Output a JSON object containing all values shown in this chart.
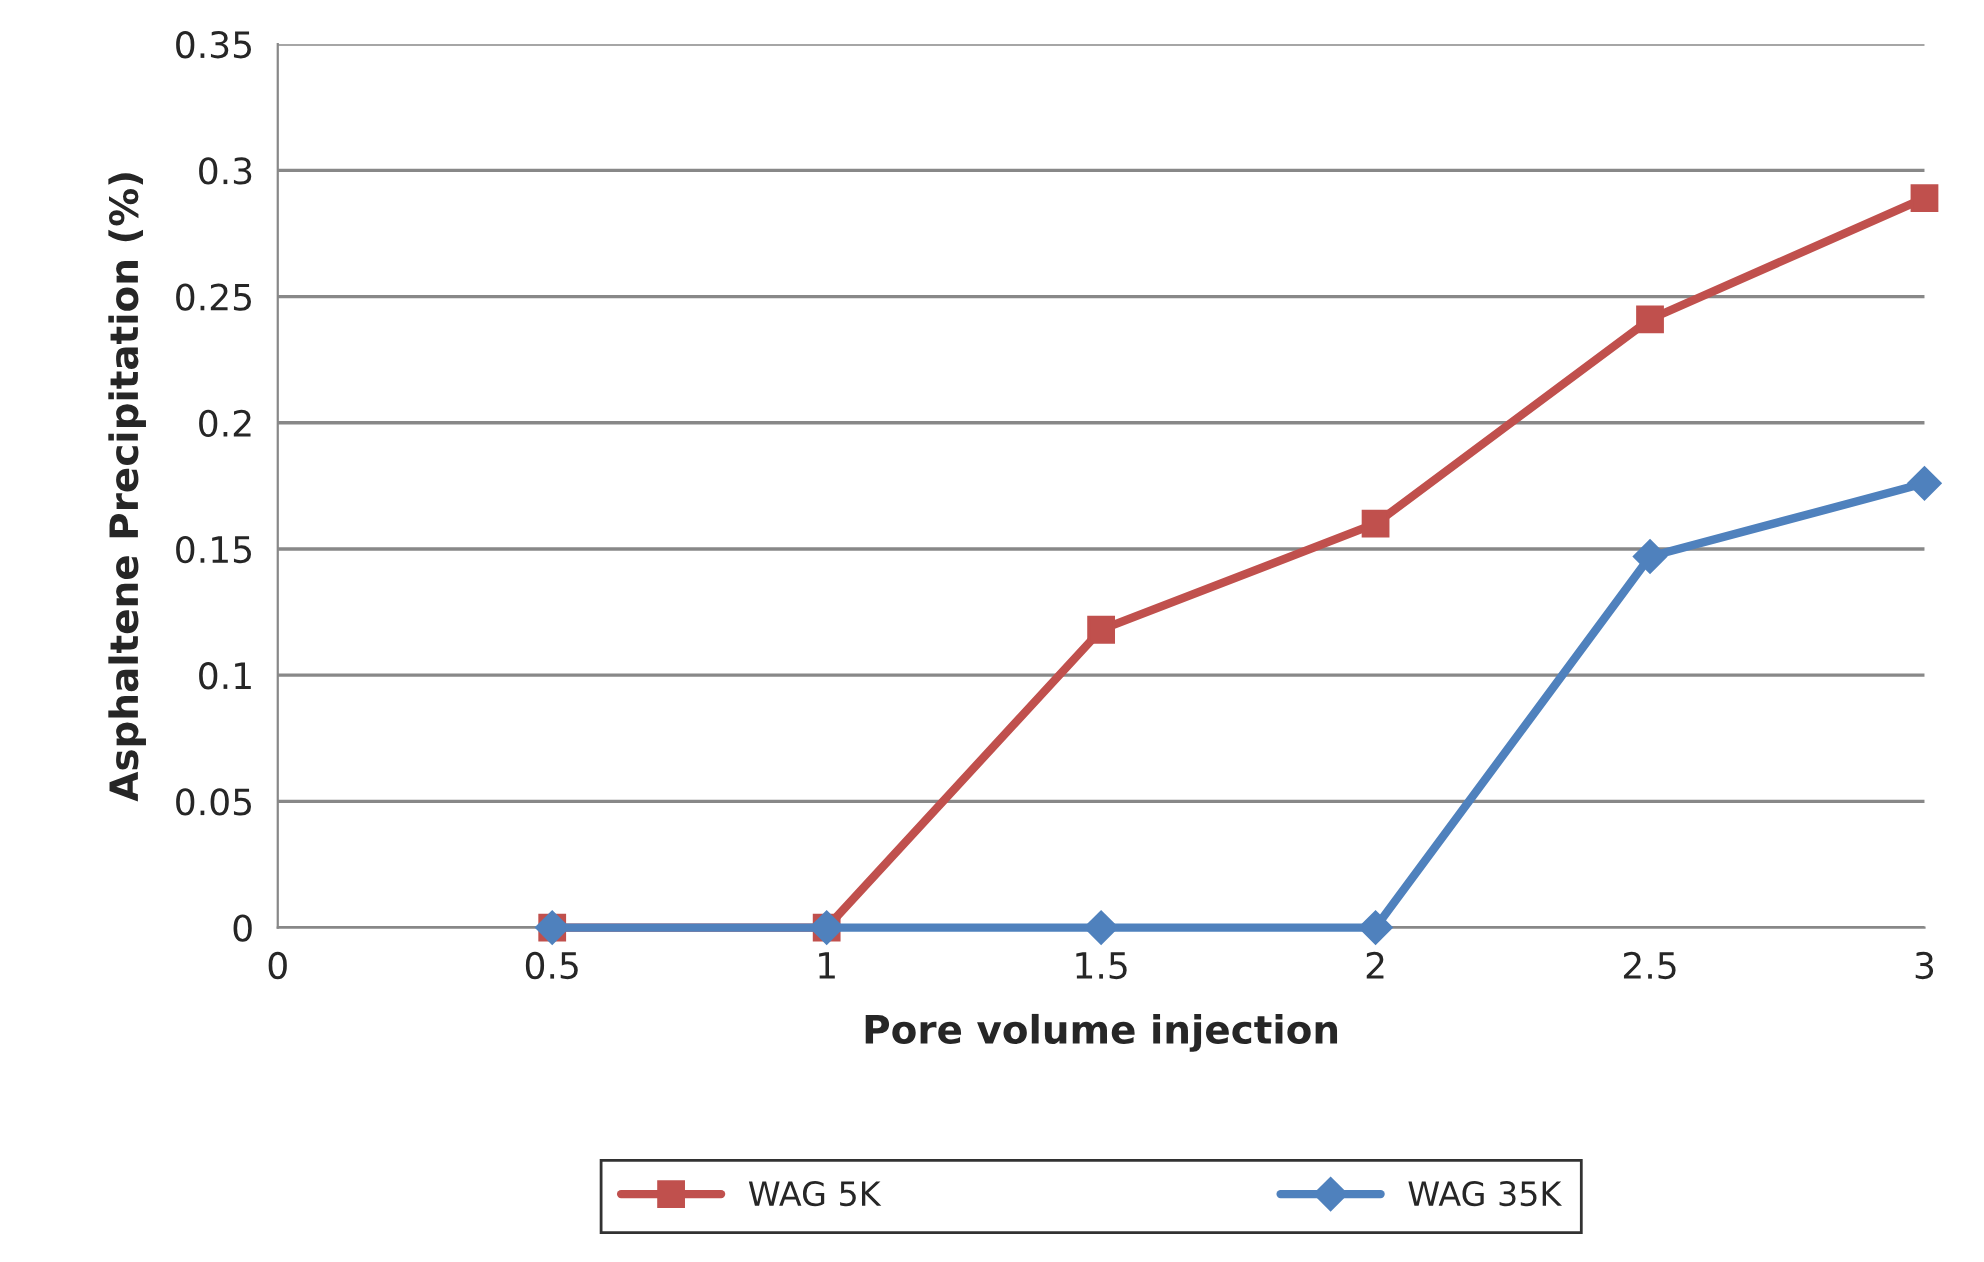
{
  "chart_data": {
    "type": "line",
    "xlabel": "Pore volume injection",
    "ylabel": "Asphaltene Precipitation (%)",
    "x": [
      0.5,
      1,
      1.5,
      2,
      2.5,
      3
    ],
    "series": [
      {
        "name": "WAG 5K",
        "color": "#c0504d",
        "marker": "square",
        "values": [
          0,
          0,
          0.118,
          0.16,
          0.241,
          0.289
        ]
      },
      {
        "name": "WAG 35K",
        "color": "#4f81bd",
        "marker": "diamond",
        "values": [
          0,
          0,
          0,
          0,
          0.147,
          0.176
        ]
      }
    ],
    "xlim": [
      0,
      3
    ],
    "xticks": [
      0,
      0.5,
      1,
      1.5,
      2,
      2.5,
      3
    ],
    "ylim": [
      0,
      0.35
    ],
    "yticks": [
      0,
      0.05,
      0.1,
      0.15,
      0.2,
      0.25,
      0.3,
      0.35
    ],
    "grid": "y",
    "legend": "bottom",
    "line_style": "solid"
  }
}
